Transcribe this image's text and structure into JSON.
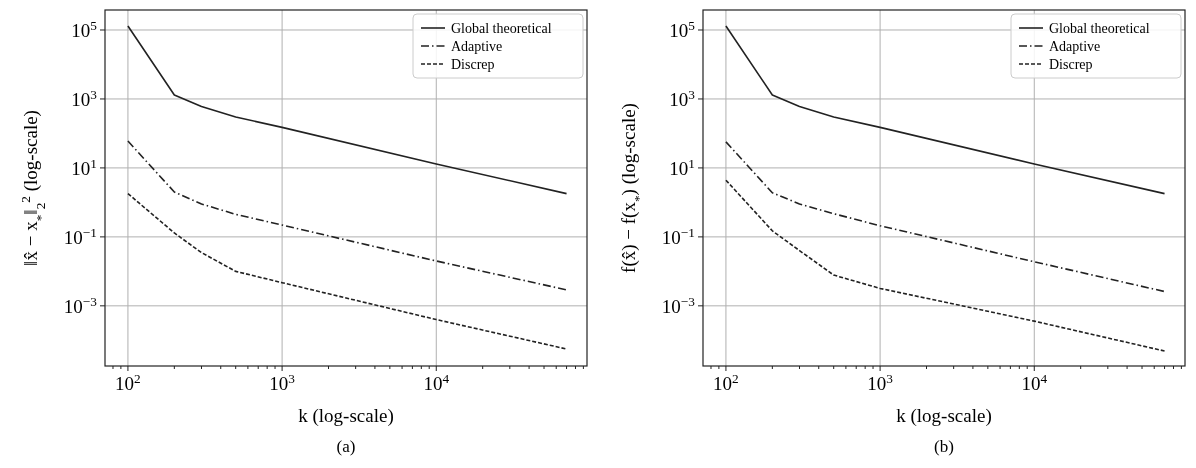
{
  "chart_data": [
    {
      "type": "line",
      "xlabel": "k (log-scale)",
      "ylabel": "‖x̂ − x$_{*}$‖$_{2}$$^{2}$ (log-scale)",
      "annotations": [
        "(a)"
      ],
      "log": "xy",
      "grid": true,
      "legend": "top right",
      "xlim": [
        71,
        95000
      ],
      "ylim": [
        1.8e-05,
        380000
      ],
      "xticks": [
        {
          "value": 80,
          "label": null
        },
        {
          "value": 90,
          "label": null
        },
        {
          "value": 100,
          "label": "10$^{2}$"
        },
        {
          "value": 200,
          "label": null
        },
        {
          "value": 300,
          "label": null
        },
        {
          "value": 400,
          "label": null
        },
        {
          "value": 500,
          "label": null
        },
        {
          "value": 600,
          "label": null
        },
        {
          "value": 700,
          "label": null
        },
        {
          "value": 800,
          "label": null
        },
        {
          "value": 900,
          "label": null
        },
        {
          "value": 1000,
          "label": "10$^{3}$"
        },
        {
          "value": 2000,
          "label": null
        },
        {
          "value": 3000,
          "label": null
        },
        {
          "value": 4000,
          "label": null
        },
        {
          "value": 5000,
          "label": null
        },
        {
          "value": 6000,
          "label": null
        },
        {
          "value": 7000,
          "label": null
        },
        {
          "value": 8000,
          "label": null
        },
        {
          "value": 9000,
          "label": null
        },
        {
          "value": 10000,
          "label": "10$^{4}$"
        },
        {
          "value": 20000,
          "label": null
        },
        {
          "value": 30000,
          "label": null
        },
        {
          "value": 40000,
          "label": null
        },
        {
          "value": 50000,
          "label": null
        },
        {
          "value": 60000,
          "label": null
        },
        {
          "value": 70000,
          "label": null
        },
        {
          "value": 80000,
          "label": null
        },
        {
          "value": 90000,
          "label": null
        }
      ],
      "yticks": [
        {
          "value": 0.001,
          "label": "10$^{−3}$"
        },
        {
          "value": 0.1,
          "label": "10$^{−1}$"
        },
        {
          "value": 10,
          "label": "10$^{1}$"
        },
        {
          "value": 1000,
          "label": "10$^{3}$"
        },
        {
          "value": 100000,
          "label": "10$^{5}$"
        }
      ],
      "x": [
        100,
        200,
        300,
        500,
        1000,
        10000,
        70000
      ],
      "series": [
        {
          "name": "Global theoretical",
          "color": "#222222",
          "line_style": "solid",
          "values": [
            130000,
            1300,
            600,
            300,
            150,
            13,
            1.8
          ]
        },
        {
          "name": "Adaptive",
          "color": "#222222",
          "line_style": "dashdot",
          "values": [
            60,
            2,
            0.9,
            0.45,
            0.22,
            0.02,
            0.0029
          ]
        },
        {
          "name": "Discrep",
          "color": "#222222",
          "line_style": "dashed",
          "values": [
            1.8,
            0.13,
            0.035,
            0.01,
            0.0047,
            0.0004,
            5.6e-05
          ]
        }
      ]
    },
    {
      "type": "line",
      "xlabel": "k (log-scale)",
      "ylabel": "f(x̂) − f(x$_{*}$) (log-scale)",
      "annotations": [
        "(b)"
      ],
      "log": "xy",
      "grid": true,
      "legend": "top right",
      "xlim": [
        71,
        95000
      ],
      "ylim": [
        1.8e-05,
        380000
      ],
      "xticks": [
        {
          "value": 80,
          "label": null
        },
        {
          "value": 90,
          "label": null
        },
        {
          "value": 100,
          "label": "10$^{2}$"
        },
        {
          "value": 200,
          "label": null
        },
        {
          "value": 300,
          "label": null
        },
        {
          "value": 400,
          "label": null
        },
        {
          "value": 500,
          "label": null
        },
        {
          "value": 600,
          "label": null
        },
        {
          "value": 700,
          "label": null
        },
        {
          "value": 800,
          "label": null
        },
        {
          "value": 900,
          "label": null
        },
        {
          "value": 1000,
          "label": "10$^{3}$"
        },
        {
          "value": 2000,
          "label": null
        },
        {
          "value": 3000,
          "label": null
        },
        {
          "value": 4000,
          "label": null
        },
        {
          "value": 5000,
          "label": null
        },
        {
          "value": 6000,
          "label": null
        },
        {
          "value": 7000,
          "label": null
        },
        {
          "value": 8000,
          "label": null
        },
        {
          "value": 9000,
          "label": null
        },
        {
          "value": 10000,
          "label": "10$^{4}$"
        },
        {
          "value": 20000,
          "label": null
        },
        {
          "value": 30000,
          "label": null
        },
        {
          "value": 40000,
          "label": null
        },
        {
          "value": 50000,
          "label": null
        },
        {
          "value": 60000,
          "label": null
        },
        {
          "value": 70000,
          "label": null
        },
        {
          "value": 80000,
          "label": null
        },
        {
          "value": 90000,
          "label": null
        }
      ],
      "yticks": [
        {
          "value": 0.001,
          "label": "10$^{−3}$"
        },
        {
          "value": 0.1,
          "label": "10$^{−1}$"
        },
        {
          "value": 10,
          "label": "10$^{1}$"
        },
        {
          "value": 1000,
          "label": "10$^{3}$"
        },
        {
          "value": 100000,
          "label": "10$^{5}$"
        }
      ],
      "x": [
        100,
        200,
        300,
        500,
        1000,
        10000,
        70000
      ],
      "series": [
        {
          "name": "Global theoretical",
          "color": "#222222",
          "line_style": "solid",
          "values": [
            130000,
            1300,
            600,
            300,
            150,
            13,
            1.8
          ]
        },
        {
          "name": "Adaptive",
          "color": "#222222",
          "line_style": "dashdot",
          "values": [
            57,
            1.9,
            0.9,
            0.47,
            0.21,
            0.019,
            0.0026
          ]
        },
        {
          "name": "Discrep",
          "color": "#222222",
          "line_style": "dashed",
          "values": [
            4.4,
            0.15,
            0.04,
            0.0078,
            0.0032,
            0.00036,
            4.9e-05
          ]
        }
      ]
    }
  ]
}
